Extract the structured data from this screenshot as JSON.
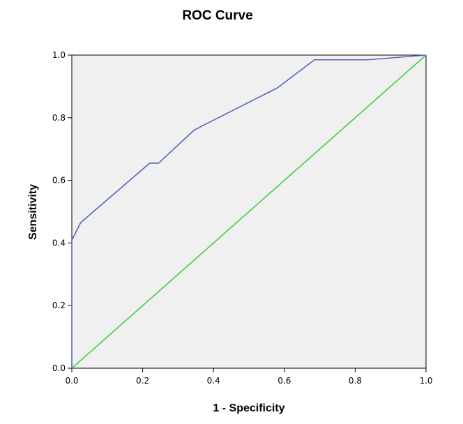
{
  "chart_data": {
    "type": "line",
    "title": "ROC Curve",
    "xlabel": "1 - Specificity",
    "ylabel": "Sensitivity",
    "xlim": [
      0,
      1
    ],
    "ylim": [
      0,
      1
    ],
    "x_ticks": [
      "0.0",
      "0.2",
      "0.4",
      "0.6",
      "0.8",
      "1.0"
    ],
    "y_ticks": [
      "0.0",
      "0.2",
      "0.4",
      "0.6",
      "0.8",
      "1.0"
    ],
    "grid": false,
    "legend": "none",
    "background_color": "#f0f0f0",
    "series": [
      {
        "color": "#5566b8",
        "x": [
          0.0,
          0.0,
          0.0,
          0.005,
          0.025,
          0.22,
          0.245,
          0.345,
          0.37,
          0.58,
          0.685,
          0.835,
          1.0
        ],
        "y": [
          0.0,
          0.38,
          0.41,
          0.42,
          0.465,
          0.655,
          0.655,
          0.76,
          0.775,
          0.895,
          0.985,
          0.985,
          1.0
        ]
      },
      {
        "color": "#44cc44",
        "x": [
          0.0,
          1.0
        ],
        "y": [
          0.0,
          1.0
        ]
      }
    ]
  }
}
